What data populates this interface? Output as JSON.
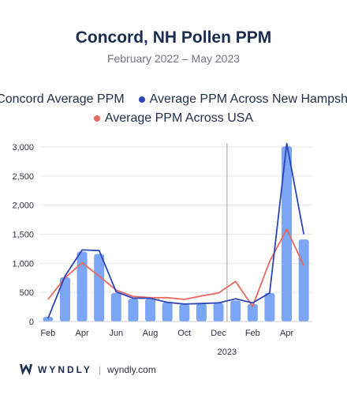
{
  "chart_data": {
    "type": "bar",
    "title": "Concord, NH Pollen PPM",
    "subtitle": "February 2022 – May 2023",
    "x_labels": [
      "Feb",
      "",
      "Apr",
      "",
      "Jun",
      "",
      "Aug",
      "",
      "Oct",
      "",
      "Dec",
      "",
      "Feb",
      "",
      "Apr",
      ""
    ],
    "year_label": "2023",
    "year_marker_after_index": 10,
    "ylim": [
      0,
      3000
    ],
    "yticks": [
      "0",
      "500",
      "1,000",
      "1,500",
      "2,000",
      "2,500",
      "3,000"
    ],
    "ytick_values": [
      0,
      500,
      1000,
      1500,
      2000,
      2500,
      3000
    ],
    "series": [
      {
        "name": "Concord Average PPM",
        "kind": "bar",
        "color": "#7aa6f5",
        "values": [
          80,
          760,
          1200,
          1160,
          490,
          390,
          390,
          330,
          300,
          310,
          320,
          360,
          300,
          490,
          3010,
          1410
        ]
      },
      {
        "name": "Average PPM Across New Hampshire",
        "kind": "line",
        "color": "#2e45b8",
        "values": [
          50,
          780,
          1230,
          1220,
          510,
          400,
          400,
          330,
          300,
          310,
          320,
          390,
          320,
          490,
          3060,
          1500
        ]
      },
      {
        "name": "Average PPM Across USA",
        "kind": "line",
        "color": "#e8695e",
        "values": [
          380,
          750,
          1010,
          780,
          540,
          430,
          410,
          410,
          380,
          440,
          490,
          690,
          260,
          1030,
          1590,
          960
        ]
      }
    ],
    "grid": true,
    "legend_position": "top"
  },
  "footer": {
    "brand": "WYNDLY",
    "separator": "|",
    "site": "wyndly.com"
  }
}
